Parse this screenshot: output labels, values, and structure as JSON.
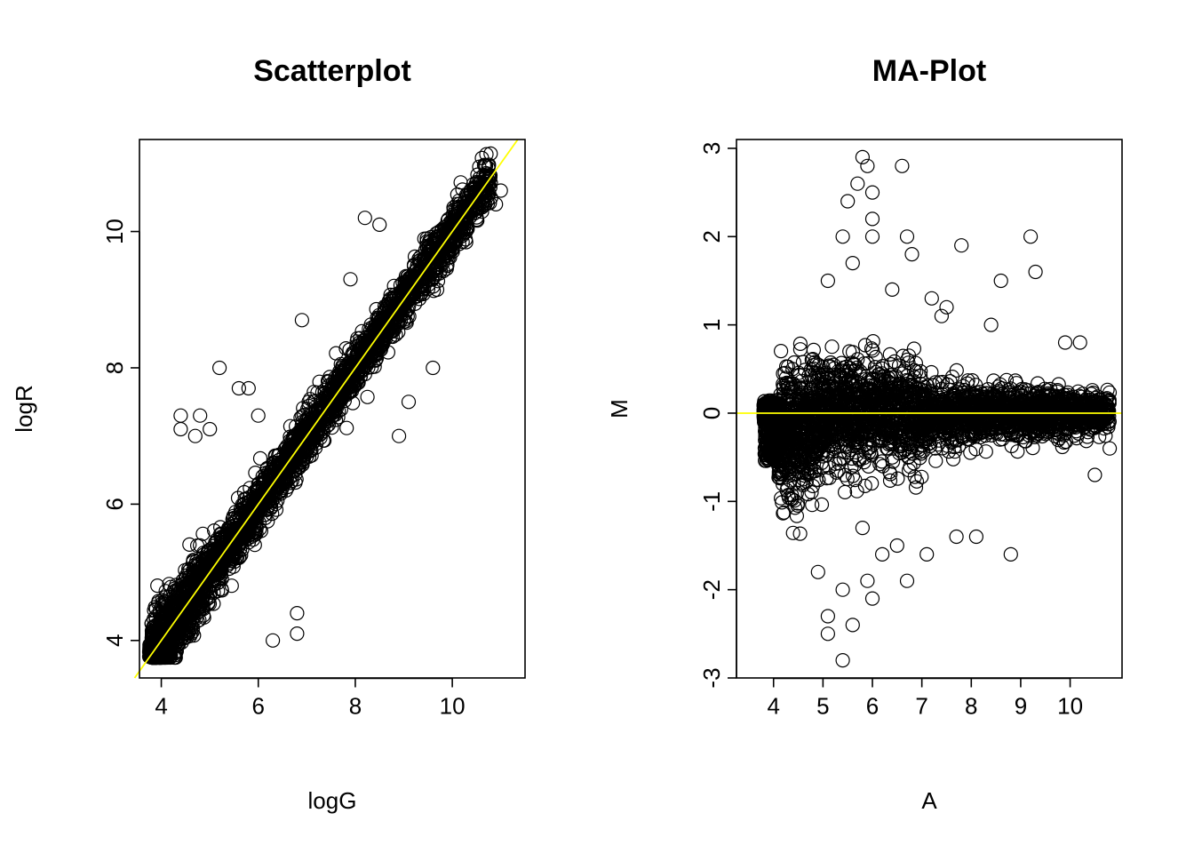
{
  "chart_data": [
    {
      "type": "scatter",
      "title": "Scatterplot",
      "xlabel": "logG",
      "ylabel": "logR",
      "xlim": [
        3.55,
        11.5
      ],
      "ylim": [
        3.45,
        11.35
      ],
      "xticks": [
        4,
        6,
        8,
        10
      ],
      "yticks": [
        4,
        6,
        8,
        10
      ],
      "grid": false,
      "legend": "none",
      "reference_line": {
        "kind": "identity",
        "slope": 1,
        "intercept": 0,
        "color": "#ffff00"
      },
      "point_cloud": {
        "description_points": [
          [
            3.8,
            3.8
          ],
          [
            4.2,
            4.3
          ],
          [
            4.6,
            4.7
          ],
          [
            5.0,
            5.1
          ],
          [
            5.5,
            5.5
          ],
          [
            6.0,
            6.1
          ],
          [
            6.5,
            6.5
          ],
          [
            7.0,
            7.0
          ],
          [
            7.5,
            7.6
          ],
          [
            8.0,
            8.0
          ],
          [
            8.5,
            8.4
          ],
          [
            9.0,
            9.0
          ],
          [
            9.5,
            9.6
          ],
          [
            10.0,
            10.0
          ],
          [
            10.5,
            10.6
          ],
          [
            10.8,
            11.0
          ]
        ],
        "outliers": [
          [
            4.4,
            7.3
          ],
          [
            4.4,
            7.1
          ],
          [
            4.7,
            7.0
          ],
          [
            4.8,
            7.3
          ],
          [
            5.0,
            7.1
          ],
          [
            5.2,
            8.0
          ],
          [
            5.6,
            7.7
          ],
          [
            5.8,
            7.7
          ],
          [
            6.0,
            7.3
          ],
          [
            6.9,
            8.7
          ],
          [
            8.2,
            10.2
          ],
          [
            8.5,
            10.1
          ],
          [
            9.6,
            8.0
          ],
          [
            9.1,
            7.5
          ],
          [
            8.9,
            7.0
          ],
          [
            5.9,
            5.6
          ],
          [
            6.3,
            4.0
          ],
          [
            6.8,
            4.1
          ],
          [
            6.8,
            4.4
          ],
          [
            7.9,
            9.3
          ],
          [
            11.0,
            10.6
          ],
          [
            10.9,
            10.4
          ]
        ]
      },
      "colors": {
        "points": "#000000",
        "line": "#ffff00"
      }
    },
    {
      "type": "scatter",
      "title": "MA-Plot",
      "xlabel": "A",
      "ylabel": "M",
      "xlim": [
        3.25,
        11.05
      ],
      "ylim": [
        -3.0,
        3.1
      ],
      "xticks": [
        4,
        5,
        6,
        7,
        8,
        9,
        10
      ],
      "yticks": [
        -3,
        -2,
        -1,
        0,
        1,
        2,
        3
      ],
      "grid": false,
      "legend": "none",
      "reference_line": {
        "kind": "horizontal",
        "y": 0,
        "color": "#ffff00"
      },
      "point_cloud": {
        "outliers": [
          [
            5.8,
            2.9
          ],
          [
            6.6,
            2.8
          ],
          [
            5.9,
            2.8
          ],
          [
            5.7,
            2.6
          ],
          [
            5.5,
            2.4
          ],
          [
            6.0,
            2.5
          ],
          [
            6.0,
            2.2
          ],
          [
            5.4,
            2.0
          ],
          [
            6.0,
            2.0
          ],
          [
            6.7,
            2.0
          ],
          [
            6.8,
            1.8
          ],
          [
            7.8,
            1.9
          ],
          [
            9.2,
            2.0
          ],
          [
            9.3,
            1.6
          ],
          [
            8.6,
            1.5
          ],
          [
            5.1,
            1.5
          ],
          [
            5.6,
            1.7
          ],
          [
            6.4,
            1.4
          ],
          [
            7.2,
            1.3
          ],
          [
            7.5,
            1.2
          ],
          [
            7.4,
            1.1
          ],
          [
            8.4,
            1.0
          ],
          [
            10.2,
            0.8
          ],
          [
            9.9,
            0.8
          ],
          [
            10.8,
            -0.4
          ],
          [
            10.5,
            -0.7
          ],
          [
            8.8,
            -1.6
          ],
          [
            7.7,
            -1.4
          ],
          [
            8.1,
            -1.4
          ],
          [
            7.1,
            -1.6
          ],
          [
            6.7,
            -1.9
          ],
          [
            5.9,
            -1.9
          ],
          [
            6.0,
            -2.1
          ],
          [
            5.4,
            -2.0
          ],
          [
            5.1,
            -2.3
          ],
          [
            5.1,
            -2.5
          ],
          [
            5.6,
            -2.4
          ],
          [
            5.4,
            -2.8
          ],
          [
            4.9,
            -1.8
          ],
          [
            5.8,
            -1.3
          ],
          [
            6.2,
            -1.6
          ],
          [
            6.5,
            -1.5
          ]
        ]
      },
      "colors": {
        "points": "#000000",
        "line": "#ffff00"
      }
    }
  ]
}
